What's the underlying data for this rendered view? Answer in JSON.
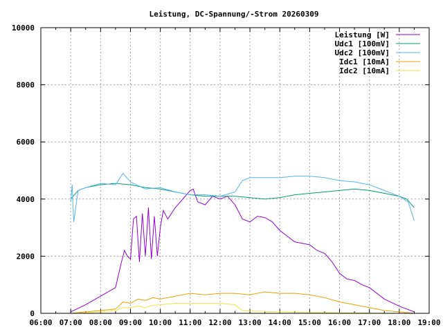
{
  "chart_data": {
    "type": "line",
    "title": "Leistung, DC-Spannung/-Strom 20260309",
    "xlabel": "",
    "ylabel": "",
    "xlim": [
      6,
      19
    ],
    "ylim": [
      0,
      10000
    ],
    "grid": true,
    "legend_position": "top-right",
    "x_ticks": [
      "06:00",
      "07:00",
      "08:00",
      "09:00",
      "10:00",
      "11:00",
      "12:00",
      "13:00",
      "14:00",
      "15:00",
      "16:00",
      "17:00",
      "18:00",
      "19:00"
    ],
    "y_ticks": [
      "0",
      "2000",
      "4000",
      "6000",
      "8000",
      "10000"
    ],
    "x_unit": "hour of day",
    "series": [
      {
        "name": "Leistung [W]",
        "color": "#9400d3",
        "x": [
          7.0,
          7.5,
          8.0,
          8.5,
          8.7,
          8.8,
          8.9,
          9.0,
          9.1,
          9.2,
          9.3,
          9.4,
          9.5,
          9.6,
          9.7,
          9.8,
          9.9,
          10.0,
          10.1,
          10.25,
          10.5,
          10.75,
          11.0,
          11.1,
          11.25,
          11.5,
          11.75,
          12.0,
          12.25,
          12.5,
          12.75,
          13.0,
          13.25,
          13.5,
          13.75,
          14.0,
          14.25,
          14.5,
          14.75,
          15.0,
          15.25,
          15.5,
          15.75,
          16.0,
          16.25,
          16.5,
          16.75,
          17.0,
          17.5,
          18.0,
          18.5
        ],
        "y": [
          50,
          300,
          600,
          900,
          1800,
          2200,
          2000,
          1900,
          3300,
          3400,
          1800,
          3500,
          2000,
          3700,
          1900,
          3400,
          2000,
          3000,
          3600,
          3300,
          3700,
          4000,
          4300,
          4350,
          3900,
          3800,
          4100,
          4000,
          4100,
          3800,
          3300,
          3200,
          3400,
          3350,
          3200,
          2900,
          2700,
          2500,
          2450,
          2400,
          2200,
          2100,
          1800,
          1400,
          1200,
          1150,
          1000,
          900,
          500,
          250,
          50
        ]
      },
      {
        "name": "Udc1 [100mV]",
        "color": "#009e73",
        "x": [
          7.0,
          7.25,
          7.5,
          8.0,
          8.5,
          9.0,
          9.5,
          10.0,
          10.5,
          11.0,
          11.5,
          12.0,
          12.5,
          13.0,
          13.5,
          14.0,
          14.5,
          15.0,
          15.5,
          16.0,
          16.5,
          17.0,
          17.5,
          18.0,
          18.25,
          18.5
        ],
        "y": [
          4000,
          4300,
          4400,
          4500,
          4550,
          4500,
          4400,
          4350,
          4250,
          4150,
          4100,
          4100,
          4100,
          4050,
          4000,
          4050,
          4150,
          4200,
          4250,
          4300,
          4350,
          4300,
          4200,
          4100,
          4000,
          3700
        ]
      },
      {
        "name": "Udc2 [100mV]",
        "color": "#56b4e9",
        "x": [
          7.0,
          7.05,
          7.1,
          7.25,
          7.5,
          8.0,
          8.5,
          8.75,
          9.0,
          9.5,
          10.0,
          10.5,
          11.0,
          11.5,
          12.0,
          12.5,
          12.75,
          13.0,
          13.5,
          14.0,
          14.5,
          15.0,
          15.5,
          16.0,
          16.5,
          17.0,
          17.5,
          18.0,
          18.3,
          18.5
        ],
        "y": [
          3900,
          4500,
          3200,
          4300,
          4400,
          4550,
          4500,
          4900,
          4600,
          4350,
          4400,
          4250,
          4150,
          4150,
          4100,
          4250,
          4650,
          4750,
          4750,
          4750,
          4800,
          4800,
          4750,
          4650,
          4600,
          4500,
          4300,
          4100,
          3900,
          3250
        ]
      },
      {
        "name": "Idc1 [10mA]",
        "color": "#e69f00",
        "x": [
          7.0,
          7.5,
          8.0,
          8.5,
          8.75,
          9.0,
          9.25,
          9.5,
          9.75,
          10.0,
          10.5,
          11.0,
          11.5,
          12.0,
          12.5,
          13.0,
          13.5,
          14.0,
          14.5,
          15.0,
          15.5,
          16.0,
          16.5,
          17.0,
          17.5,
          18.0,
          18.5
        ],
        "y": [
          0,
          50,
          100,
          150,
          400,
          350,
          500,
          450,
          550,
          500,
          600,
          700,
          650,
          700,
          700,
          650,
          750,
          700,
          700,
          650,
          550,
          400,
          300,
          200,
          100,
          50,
          0
        ]
      },
      {
        "name": "Idc2 [10mA]",
        "color": "#f0e442",
        "x": [
          7.0,
          7.5,
          8.0,
          8.5,
          8.75,
          9.0,
          9.25,
          9.5,
          9.75,
          10.0,
          10.5,
          11.0,
          11.5,
          12.0,
          12.5,
          12.75,
          13.0,
          14.0,
          15.0,
          16.0,
          17.0,
          18.0,
          18.5
        ],
        "y": [
          0,
          20,
          50,
          100,
          200,
          200,
          250,
          200,
          280,
          300,
          350,
          350,
          350,
          350,
          300,
          100,
          80,
          50,
          30,
          20,
          10,
          0,
          0
        ]
      }
    ]
  }
}
